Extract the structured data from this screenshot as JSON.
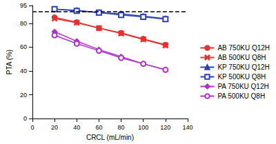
{
  "chart_data": {
    "type": "line",
    "x_label": "CRCL (mL/min)",
    "y_label": "PTA (%)",
    "xlim": [
      0,
      140
    ],
    "xticks": [
      0,
      20,
      40,
      60,
      80,
      100,
      120,
      140
    ],
    "ylim": [
      0,
      95
    ],
    "yticks": [
      0,
      20,
      40,
      60,
      80
    ],
    "grid": false,
    "legend": "right",
    "hline": 90,
    "series": [
      {
        "name": "AB 750KU Q12H",
        "color": "#e8302e",
        "marker": "circle",
        "x": [
          20,
          40,
          60,
          80,
          100,
          120
        ],
        "values": [
          85,
          81,
          76,
          72,
          67,
          62
        ]
      },
      {
        "name": "AB 500KU Q8H",
        "color": "#e8302e",
        "marker": "x",
        "x": [
          20,
          40,
          60,
          80,
          100,
          120
        ],
        "values": [
          84,
          80.5,
          76,
          71.5,
          66.5,
          61.5
        ]
      },
      {
        "name": "KP 750KU Q12H",
        "color": "#2b3fbf",
        "marker": "triangle",
        "x": [
          20,
          40,
          60,
          80,
          100,
          120
        ],
        "values": [
          92,
          91,
          89,
          88,
          86,
          84
        ]
      },
      {
        "name": "KP 500KU Q8H",
        "color": "#2b3fbf",
        "marker": "square_open",
        "x": [
          20,
          40,
          60,
          80,
          100,
          120
        ],
        "values": [
          92,
          90.5,
          89,
          87,
          85.5,
          83.5
        ]
      },
      {
        "name": "PA 750KU Q12H",
        "color": "#b030d0",
        "marker": "diamond",
        "x": [
          20,
          40,
          60,
          80,
          100,
          120
        ],
        "values": [
          73,
          65,
          58,
          52,
          46,
          41
        ]
      },
      {
        "name": "PA 500KU Q8H",
        "color": "#b030d0",
        "marker": "circle_open",
        "x": [
          20,
          40,
          60,
          80,
          100,
          120
        ],
        "values": [
          70,
          63,
          57,
          51,
          46,
          41
        ]
      }
    ]
  }
}
